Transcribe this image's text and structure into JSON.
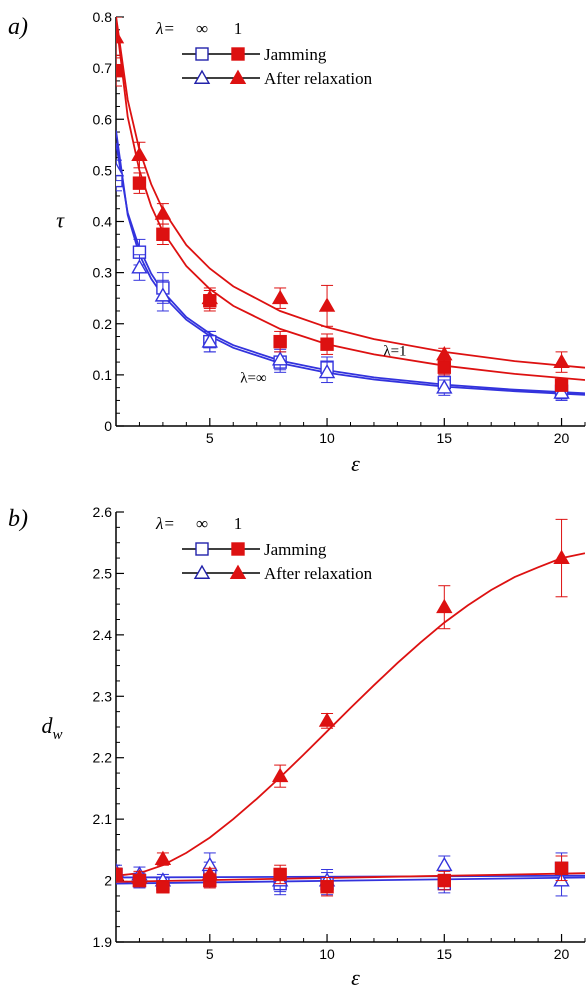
{
  "chart_data": [
    {
      "type": "scatter",
      "panel_label": "a)",
      "xlabel": "ε",
      "ylabel": "τ",
      "ylabel_sub": "",
      "xlim": [
        1,
        21
      ],
      "ylim": [
        0,
        0.8
      ],
      "x_ticks": [
        5,
        10,
        15,
        20
      ],
      "y_ticks": [
        0,
        0.1,
        0.2,
        0.3,
        0.4,
        0.5,
        0.6,
        0.7,
        0.8
      ],
      "y_tick_labels": [
        "0",
        "0.1",
        "0.2",
        "0.3",
        "0.4",
        "0.5",
        "0.6",
        "0.7",
        "0.8"
      ],
      "legend": {
        "header_prefix": "λ=",
        "header_col1": "∞",
        "header_col2": "1",
        "entries": [
          "Jamming",
          "After relaxation"
        ],
        "placement": "top-center"
      },
      "annotations": [
        {
          "text": "λ=1",
          "x": 12.4,
          "y": 0.138
        },
        {
          "text": "λ=∞",
          "x": 6.3,
          "y": 0.085
        }
      ],
      "series": [
        {
          "name": "Jamming",
          "lambda": "∞",
          "marker": "open-square",
          "color": "#3333dd",
          "x": [
            1,
            2,
            3,
            5,
            8,
            10,
            15,
            20
          ],
          "y": [
            0.48,
            0.34,
            0.27,
            0.165,
            0.125,
            0.115,
            0.085,
            0.068
          ],
          "err": [
            0.02,
            0.025,
            0.03,
            0.02,
            0.02,
            0.02,
            0.015,
            0.015
          ],
          "fit": [
            [
              1,
              0.553
            ],
            [
              1.5,
              0.417
            ],
            [
              2,
              0.348
            ],
            [
              2.5,
              0.298
            ],
            [
              3,
              0.263
            ],
            [
              4,
              0.213
            ],
            [
              5,
              0.181
            ],
            [
              6,
              0.158
            ],
            [
              8,
              0.128
            ],
            [
              10,
              0.109
            ],
            [
              12,
              0.095
            ],
            [
              15,
              0.081
            ],
            [
              18,
              0.071
            ],
            [
              21,
              0.064
            ]
          ]
        },
        {
          "name": "After relaxation",
          "lambda": "∞",
          "marker": "open-triangle",
          "color": "#3333dd",
          "x": [
            1,
            2,
            3,
            5,
            8,
            10,
            15,
            20
          ],
          "y": [
            0.5,
            0.31,
            0.255,
            0.165,
            0.13,
            0.105,
            0.075,
            0.065
          ],
          "err": [
            0.02,
            0.025,
            0.03,
            0.02,
            0.02,
            0.02,
            0.015,
            0.015
          ],
          "fit": [
            [
              1,
              0.578
            ],
            [
              1.5,
              0.413
            ],
            [
              2,
              0.335
            ],
            [
              2.5,
              0.288
            ],
            [
              3,
              0.255
            ],
            [
              4,
              0.208
            ],
            [
              5,
              0.176
            ],
            [
              6,
              0.153
            ],
            [
              8,
              0.123
            ],
            [
              10,
              0.104
            ],
            [
              12,
              0.091
            ],
            [
              15,
              0.077
            ],
            [
              18,
              0.068
            ],
            [
              21,
              0.061
            ]
          ]
        },
        {
          "name": "Jamming",
          "lambda": "1",
          "marker": "filled-square",
          "color": "#dd1111",
          "x": [
            1,
            2,
            3,
            5,
            8,
            10,
            15,
            20
          ],
          "y": [
            0.695,
            0.475,
            0.375,
            0.245,
            0.165,
            0.16,
            0.115,
            0.08
          ],
          "err": [
            0.03,
            0.02,
            0.02,
            0.02,
            0.02,
            0.02,
            0.015,
            0.012
          ],
          "fit": [
            [
              1,
              0.795
            ],
            [
              1.5,
              0.605
            ],
            [
              2,
              0.5
            ],
            [
              2.5,
              0.43
            ],
            [
              3,
              0.38
            ],
            [
              4,
              0.313
            ],
            [
              5,
              0.268
            ],
            [
              6,
              0.235
            ],
            [
              8,
              0.19
            ],
            [
              10,
              0.16
            ],
            [
              12,
              0.14
            ],
            [
              15,
              0.118
            ],
            [
              18,
              0.102
            ],
            [
              21,
              0.09
            ]
          ]
        },
        {
          "name": "After relaxation",
          "lambda": "1",
          "marker": "filled-triangle",
          "color": "#dd1111",
          "x": [
            1,
            2,
            3,
            5,
            8,
            10,
            15,
            20
          ],
          "y": [
            0.76,
            0.53,
            0.415,
            0.25,
            0.25,
            0.235,
            0.14,
            0.125
          ],
          "err": [
            0.04,
            0.025,
            0.02,
            0.02,
            0.02,
            0.04,
            0.012,
            0.02
          ],
          "fit": [
            [
              1,
              0.802
            ],
            [
              1.5,
              0.638
            ],
            [
              2,
              0.54
            ],
            [
              2.5,
              0.473
            ],
            [
              3,
              0.423
            ],
            [
              4,
              0.354
            ],
            [
              5,
              0.308
            ],
            [
              6,
              0.273
            ],
            [
              8,
              0.225
            ],
            [
              10,
              0.193
            ],
            [
              12,
              0.17
            ],
            [
              15,
              0.145
            ],
            [
              18,
              0.127
            ],
            [
              21,
              0.114
            ]
          ]
        }
      ]
    },
    {
      "type": "scatter",
      "panel_label": "b)",
      "xlabel": "ε",
      "ylabel": "d",
      "ylabel_sub": "w",
      "xlim": [
        1,
        21
      ],
      "ylim": [
        1.9,
        2.6
      ],
      "x_ticks": [
        5,
        10,
        15,
        20
      ],
      "y_ticks": [
        1.9,
        2.0,
        2.1,
        2.2,
        2.3,
        2.4,
        2.5,
        2.6
      ],
      "y_tick_labels": [
        "1.9",
        "2",
        "2.1",
        "2.2",
        "2.3",
        "2.4",
        "2.5",
        "2.6"
      ],
      "legend": {
        "header_prefix": "λ=",
        "header_col1": "∞",
        "header_col2": "1",
        "entries": [
          "Jamming",
          "After relaxation"
        ],
        "placement": "top-center"
      },
      "annotations": [],
      "series": [
        {
          "name": "Jamming",
          "lambda": "∞",
          "marker": "open-square",
          "color": "#3333dd",
          "x": [
            1,
            2,
            3,
            5,
            8,
            10,
            15,
            20
          ],
          "y": [
            2.01,
            2.0,
            1.995,
            2.01,
            1.995,
            1.995,
            1.995,
            2.02
          ],
          "err": [
            0.01,
            0.012,
            0.01,
            0.02,
            0.018,
            0.018,
            0.015,
            0.025
          ],
          "fit": [
            [
              1,
              2.005
            ],
            [
              21,
              2.008
            ]
          ]
        },
        {
          "name": "After relaxation",
          "lambda": "∞",
          "marker": "open-triangle",
          "color": "#3333dd",
          "x": [
            1,
            2,
            3,
            5,
            8,
            10,
            15,
            20
          ],
          "y": [
            2.015,
            2.01,
            2.0,
            2.025,
            2.0,
            2.0,
            2.025,
            2.0
          ],
          "err": [
            0.01,
            0.012,
            0.01,
            0.02,
            0.018,
            0.018,
            0.015,
            0.025
          ],
          "fit": [
            [
              1,
              1.995
            ],
            [
              21,
              2.005
            ]
          ]
        },
        {
          "name": "Jamming",
          "lambda": "1",
          "marker": "filled-square",
          "color": "#dd1111",
          "x": [
            1,
            2,
            3,
            5,
            8,
            10,
            15,
            20
          ],
          "y": [
            2.01,
            2.0,
            1.99,
            2.0,
            2.01,
            1.99,
            2.0,
            2.02
          ],
          "err": [
            0.01,
            0.01,
            0.01,
            0.012,
            0.015,
            0.015,
            0.015,
            0.02
          ],
          "fit": [
            [
              1,
              1.998
            ],
            [
              21,
              2.012
            ]
          ]
        },
        {
          "name": "After relaxation",
          "lambda": "1",
          "marker": "filled-triangle",
          "color": "#dd1111",
          "x": [
            1,
            2,
            3,
            5,
            8,
            10,
            15,
            20
          ],
          "y": [
            2.01,
            2.005,
            2.035,
            2.01,
            2.17,
            2.26,
            2.445,
            2.525
          ],
          "err": [
            0.01,
            0.01,
            0.01,
            0.01,
            0.018,
            0.012,
            0.035,
            0.063
          ],
          "fit": [
            [
              1,
              2.008
            ],
            [
              2,
              2.012
            ],
            [
              3,
              2.025
            ],
            [
              4,
              2.045
            ],
            [
              5,
              2.07
            ],
            [
              6,
              2.1
            ],
            [
              7,
              2.133
            ],
            [
              8,
              2.168
            ],
            [
              9,
              2.205
            ],
            [
              10,
              2.243
            ],
            [
              11,
              2.281
            ],
            [
              12,
              2.318
            ],
            [
              13,
              2.354
            ],
            [
              14,
              2.388
            ],
            [
              15,
              2.42
            ],
            [
              16,
              2.448
            ],
            [
              17,
              2.473
            ],
            [
              18,
              2.494
            ],
            [
              19,
              2.51
            ],
            [
              20,
              2.525
            ],
            [
              21,
              2.533
            ]
          ]
        }
      ]
    }
  ]
}
